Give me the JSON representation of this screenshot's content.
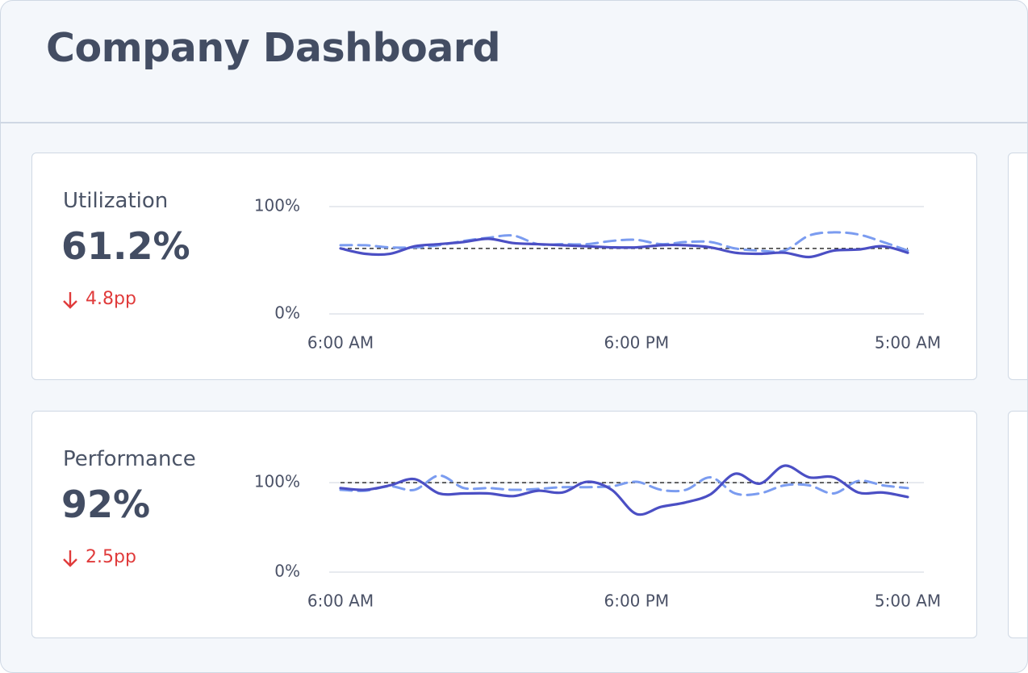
{
  "header": {
    "title": "Company Dashboard"
  },
  "kpis": [
    {
      "label": "Utilization",
      "value": "61.2%",
      "delta": "4.8pp"
    },
    {
      "label": "Performance",
      "value": "92%",
      "delta": "2.5pp"
    }
  ],
  "chart_data": [
    {
      "type": "line",
      "categories": [
        "6:00 AM",
        null,
        null,
        null,
        null,
        null,
        null,
        null,
        null,
        null,
        null,
        null,
        "6:00 PM",
        null,
        null,
        null,
        null,
        null,
        null,
        null,
        null,
        null,
        null,
        "5:00 AM"
      ],
      "ylim": [
        0,
        100
      ],
      "yticks": [
        {
          "value": 0,
          "label": "0%"
        },
        {
          "value": 100,
          "label": "100%"
        }
      ],
      "grid": true,
      "reference": 61,
      "reference_color": "#333333",
      "series": [
        {
          "color": "#7b9cf0",
          "dashed": true,
          "values": [
            64,
            64,
            62,
            62,
            64,
            68,
            71,
            73,
            65,
            65,
            65,
            68,
            69,
            65,
            67,
            67,
            61,
            59,
            59,
            73,
            76,
            74,
            67,
            59
          ]
        },
        {
          "color": "#4b4fc4",
          "dashed": false,
          "values": [
            61,
            56,
            56,
            63,
            65,
            67,
            70,
            66,
            65,
            64,
            63,
            62,
            62,
            64,
            64,
            62,
            57,
            56,
            57,
            53,
            59,
            60,
            63,
            57
          ]
        }
      ]
    },
    {
      "type": "line",
      "categories": [
        "6:00 AM",
        null,
        null,
        null,
        null,
        null,
        null,
        null,
        null,
        null,
        null,
        null,
        "6:00 PM",
        null,
        null,
        null,
        null,
        null,
        null,
        null,
        null,
        null,
        null,
        "5:00 AM"
      ],
      "ylim": [
        0,
        120
      ],
      "yticks": [
        {
          "value": 0,
          "label": "0%"
        },
        {
          "value": 100,
          "label": "100%"
        }
      ],
      "grid": true,
      "reference": 100,
      "reference_color": "#333333",
      "series": [
        {
          "color": "#7b9cf0",
          "dashed": true,
          "values": [
            92,
            91,
            96,
            92,
            108,
            94,
            94,
            92,
            93,
            95,
            95,
            96,
            101,
            92,
            92,
            106,
            88,
            88,
            97,
            97,
            88,
            102,
            97,
            94
          ]
        },
        {
          "color": "#4b4fc4",
          "dashed": false,
          "values": [
            94,
            92,
            97,
            104,
            88,
            88,
            88,
            85,
            91,
            89,
            101,
            92,
            65,
            73,
            78,
            87,
            110,
            99,
            119,
            106,
            106,
            89,
            89,
            84
          ]
        }
      ]
    }
  ]
}
